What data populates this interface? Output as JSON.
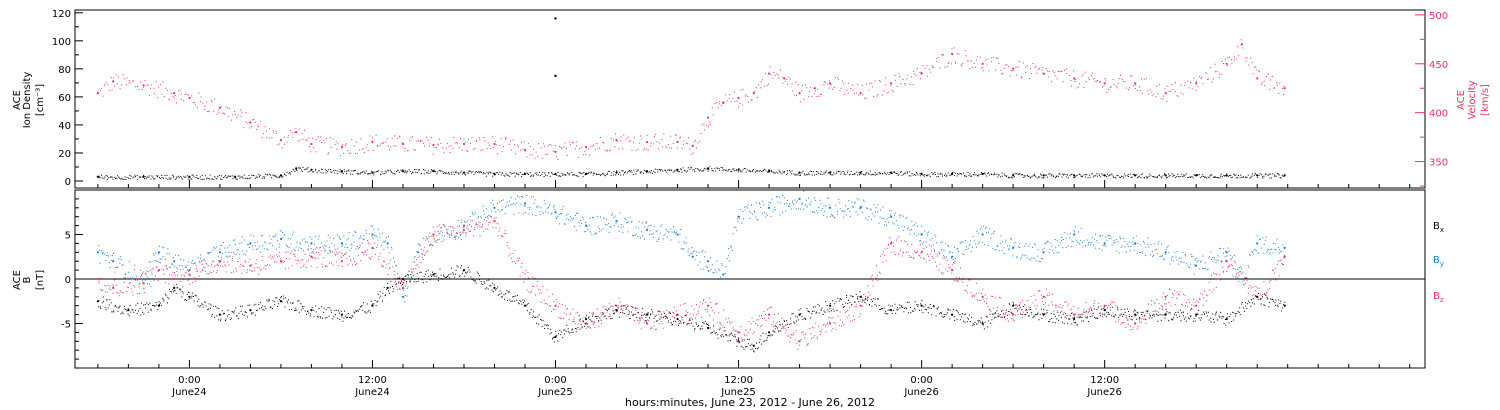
{
  "colors": {
    "axis": "#000000",
    "density": "#000000",
    "velocity": "#e8335a",
    "bx": "#000000",
    "by": "#1a7fd6",
    "bz": "#e8335a"
  },
  "chart_data": [
    {
      "type": "scatter",
      "panel": "top",
      "y_left": {
        "label": [
          "ACE",
          "Ion Density",
          "[cm⁻³]"
        ],
        "ticks": [
          0,
          20,
          40,
          60,
          80,
          100,
          120
        ],
        "ylim": [
          -5,
          122
        ]
      },
      "y_right": {
        "label": [
          "ACE",
          "Velocity",
          "[km/s]"
        ],
        "ticks": [
          350,
          400,
          450,
          500
        ],
        "ylim": [
          323,
          505
        ]
      },
      "series": [
        {
          "key": "density",
          "axis": "left",
          "x": [
            -6,
            -3,
            0,
            3,
            6,
            7,
            8,
            10,
            12,
            14,
            16,
            18,
            20,
            22,
            24,
            26,
            28,
            30,
            32,
            34,
            36,
            38,
            40,
            42,
            44,
            46,
            48,
            50,
            52,
            54,
            56,
            58,
            60,
            62,
            64,
            66,
            68,
            70,
            71.8
          ],
          "values": [
            3,
            3,
            3,
            3,
            4,
            9,
            8,
            7,
            6,
            7,
            7,
            6,
            5,
            5,
            5,
            5,
            6,
            7,
            8,
            9,
            8,
            7,
            6,
            6,
            6,
            6,
            5,
            5,
            5,
            4,
            4,
            4,
            4,
            4,
            4,
            4,
            4,
            4,
            4
          ]
        },
        {
          "key": "velocity",
          "axis": "right",
          "x": [
            -6,
            -5,
            -3,
            -1,
            0,
            2,
            4,
            6,
            7,
            8,
            10,
            12,
            14,
            16,
            18,
            20,
            22,
            24,
            26,
            28,
            30,
            32,
            33,
            34,
            35,
            36,
            37,
            38,
            39,
            40,
            41,
            42,
            44,
            46,
            48,
            50,
            52,
            54,
            56,
            58,
            60,
            62,
            64,
            66,
            68,
            69,
            70,
            71.8
          ],
          "values": [
            420,
            432,
            428,
            420,
            415,
            405,
            390,
            372,
            380,
            368,
            365,
            370,
            368,
            367,
            368,
            368,
            362,
            360,
            365,
            372,
            370,
            370,
            366,
            395,
            410,
            415,
            420,
            440,
            435,
            420,
            425,
            430,
            420,
            430,
            440,
            460,
            450,
            445,
            440,
            435,
            430,
            430,
            420,
            430,
            450,
            470,
            435,
            425
          ]
        }
      ],
      "outliers": [
        {
          "x": 24,
          "value": 116
        },
        {
          "x": 24,
          "value": 75
        }
      ]
    },
    {
      "type": "scatter",
      "panel": "bottom",
      "y": {
        "label": [
          "ACE",
          "B",
          "[nT]"
        ],
        "ticks": [
          -5,
          0,
          5
        ],
        "ylim": [
          -10,
          10
        ]
      },
      "legend": {
        "entries": [
          "Bx",
          "By",
          "Bz"
        ],
        "placement": "right"
      },
      "series": [
        {
          "key": "bx",
          "name": "Bx",
          "x": [
            -6,
            -4,
            -2,
            -1,
            0,
            2,
            4,
            6,
            8,
            10,
            12,
            13,
            14,
            16,
            18,
            20,
            22,
            24,
            26,
            28,
            30,
            32,
            34,
            36,
            37,
            38,
            40,
            42,
            44,
            46,
            48,
            50,
            52,
            54,
            56,
            58,
            60,
            62,
            64,
            66,
            68,
            70,
            71.8
          ],
          "values": [
            -2.5,
            -3.5,
            -3,
            -1,
            -2,
            -4,
            -3.5,
            -2.5,
            -3.5,
            -4,
            -3,
            -1,
            0,
            0.5,
            1,
            -1,
            -3,
            -6.5,
            -4.5,
            -3.5,
            -4,
            -4.5,
            -5.5,
            -7,
            -7.5,
            -6,
            -4,
            -3,
            -2,
            -3.5,
            -3,
            -4,
            -5,
            -3,
            -4,
            -4.5,
            -3.5,
            -4,
            -4,
            -4,
            -4.5,
            -2,
            -3
          ]
        },
        {
          "key": "by",
          "name": "By",
          "x": [
            -6,
            -5,
            -3,
            -2,
            -1,
            0,
            2,
            4,
            6,
            8,
            10,
            12,
            13,
            14,
            15,
            16,
            18,
            20,
            22,
            24,
            26,
            28,
            30,
            32,
            33,
            34,
            35,
            36,
            38,
            40,
            42,
            44,
            46,
            48,
            50,
            52,
            54,
            56,
            58,
            60,
            62,
            64,
            66,
            68,
            69,
            70,
            71.8
          ],
          "values": [
            3,
            2,
            0,
            3,
            2,
            1,
            3,
            4,
            4.5,
            4,
            4,
            5,
            4,
            -2,
            3,
            5,
            6,
            8,
            8.5,
            7.5,
            6,
            6.5,
            5.5,
            5,
            2.5,
            2,
            0.5,
            7,
            8,
            9,
            8,
            8,
            7,
            5,
            2.5,
            5,
            3.5,
            3,
            5,
            4,
            4,
            3,
            1.5,
            3,
            0,
            4,
            3.5
          ]
        },
        {
          "key": "bz",
          "name": "Bz",
          "x": [
            -6,
            -5,
            -3,
            -2,
            -1,
            0,
            2,
            4,
            6,
            8,
            10,
            12,
            14,
            16,
            18,
            20,
            22,
            24,
            26,
            28,
            30,
            32,
            34,
            36,
            38,
            40,
            42,
            44,
            46,
            48,
            50,
            52,
            54,
            56,
            58,
            60,
            62,
            64,
            66,
            68,
            70,
            71.8
          ],
          "values": [
            0,
            -1,
            -0.5,
            1,
            0,
            0.5,
            2,
            1.5,
            2,
            2.5,
            2,
            3.5,
            -1,
            5,
            5.5,
            6.5,
            0,
            -3,
            -5,
            -3,
            -5,
            -4,
            -3,
            -6,
            -4,
            -7,
            -5,
            -3,
            4,
            3,
            1,
            -2,
            -4,
            -2,
            -4,
            -3,
            -5,
            -2,
            -3,
            2,
            -2,
            2.5
          ]
        }
      ]
    }
  ],
  "x_axis": {
    "ticks": [
      {
        "x": 0,
        "time": "0:00",
        "date": "June24"
      },
      {
        "x": 12,
        "time": "12:00",
        "date": "June24"
      },
      {
        "x": 24,
        "time": "0:00",
        "date": "June25"
      },
      {
        "x": 36,
        "time": "12:00",
        "date": "June25"
      },
      {
        "x": 48,
        "time": "0:00",
        "date": "June26"
      },
      {
        "x": 60,
        "time": "12:00",
        "date": "June26"
      }
    ],
    "xlim": [
      -7.5,
      81
    ],
    "title": "hours:minutes, June 23, 2012 - June 26, 2012"
  }
}
